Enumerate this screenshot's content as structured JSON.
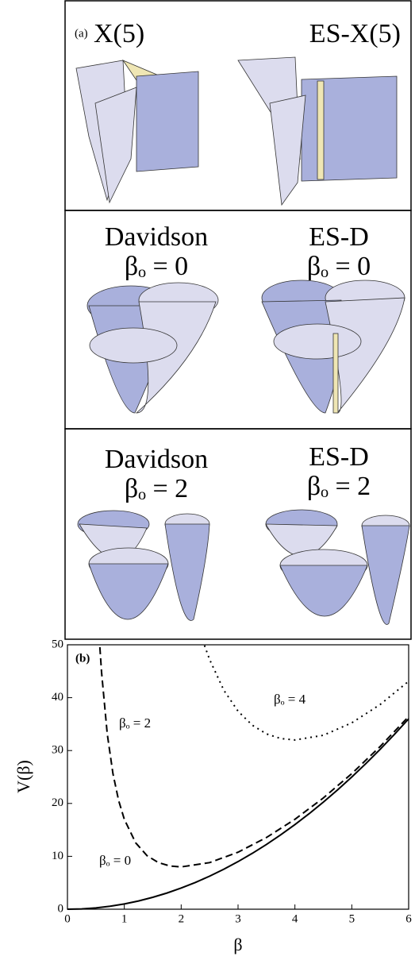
{
  "panel_a": {
    "label": "(a)",
    "rows": [
      {
        "left": [
          "X(5)"
        ],
        "right": [
          "ES-X(5)"
        ]
      },
      {
        "left": [
          "Davidson",
          "βₒ = 0"
        ],
        "right": [
          "ES-D",
          "βₒ = 0"
        ]
      },
      {
        "left": [
          "Davidson",
          "βₒ = 2"
        ],
        "right": [
          "ES-D",
          "βₒ = 2"
        ]
      }
    ]
  },
  "chart_data": {
    "type": "line",
    "panel_label": "(b)",
    "x_label": "β",
    "y_label": "V(β)",
    "xlim": [
      0,
      6
    ],
    "ylim": [
      0,
      50
    ],
    "xticks": [
      0,
      1,
      2,
      3,
      4,
      5,
      6
    ],
    "yticks": [
      0,
      10,
      20,
      30,
      40,
      50
    ],
    "series": [
      {
        "name": "βₒ = 0",
        "color": "#000000",
        "style": "solid",
        "x": [
          0,
          0.25,
          0.5,
          0.75,
          1,
          1.25,
          1.5,
          1.75,
          2,
          2.25,
          2.5,
          2.75,
          3,
          3.25,
          3.5,
          3.75,
          4,
          4.25,
          4.5,
          4.75,
          5,
          5.25,
          5.5,
          5.75,
          6
        ],
        "values": [
          0,
          0.06,
          0.25,
          0.56,
          1,
          1.56,
          2.25,
          3.06,
          4,
          5.06,
          6.25,
          7.56,
          9,
          10.56,
          12.25,
          14.06,
          16,
          18.06,
          20.25,
          22.56,
          25,
          27.56,
          30.25,
          33.06,
          36
        ]
      },
      {
        "name": "βₒ = 2",
        "color": "#000000",
        "style": "dashed",
        "x": [
          0.57,
          0.6,
          0.7,
          0.8,
          0.9,
          1,
          1.2,
          1.4,
          1.6,
          1.8,
          2,
          2.5,
          3,
          3.5,
          4,
          4.5,
          5,
          5.5,
          6
        ],
        "values": [
          49.55,
          44.8,
          33.14,
          25.64,
          20.56,
          17,
          12.55,
          10.12,
          8.81,
          8.18,
          8,
          8.81,
          10.78,
          13.56,
          17,
          21.04,
          25.64,
          30.78,
          36.44
        ]
      },
      {
        "name": "βₒ = 4",
        "color": "#000000",
        "style": "dotted",
        "x": [
          2.41,
          2.5,
          2.75,
          3,
          3.25,
          3.5,
          3.75,
          4,
          4.5,
          5,
          5.5,
          6
        ],
        "values": [
          49.87,
          47.21,
          41.41,
          37.44,
          34.8,
          33.15,
          32.27,
          32,
          32.89,
          35.24,
          38.71,
          43.11
        ]
      }
    ]
  }
}
